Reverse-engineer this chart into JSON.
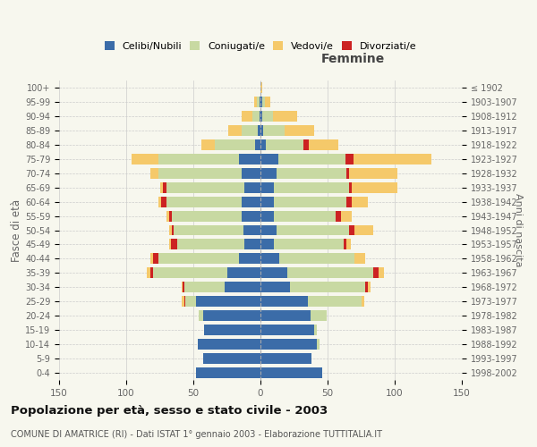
{
  "age_groups": [
    "0-4",
    "5-9",
    "10-14",
    "15-19",
    "20-24",
    "25-29",
    "30-34",
    "35-39",
    "40-44",
    "45-49",
    "50-54",
    "55-59",
    "60-64",
    "65-69",
    "70-74",
    "75-79",
    "80-84",
    "85-89",
    "90-94",
    "95-99",
    "100+"
  ],
  "birth_years": [
    "1998-2002",
    "1993-1997",
    "1988-1992",
    "1983-1987",
    "1978-1982",
    "1973-1977",
    "1968-1972",
    "1963-1967",
    "1958-1962",
    "1953-1957",
    "1948-1952",
    "1943-1947",
    "1938-1942",
    "1933-1937",
    "1928-1932",
    "1923-1927",
    "1918-1922",
    "1913-1917",
    "1908-1912",
    "1903-1907",
    "≤ 1902"
  ],
  "male": {
    "celibi": [
      48,
      43,
      47,
      42,
      43,
      48,
      27,
      25,
      16,
      12,
      13,
      14,
      14,
      12,
      14,
      16,
      4,
      2,
      1,
      1,
      0
    ],
    "coniugati": [
      0,
      0,
      0,
      0,
      3,
      8,
      30,
      55,
      60,
      50,
      52,
      52,
      56,
      58,
      62,
      60,
      30,
      12,
      5,
      2,
      0
    ],
    "vedovi": [
      0,
      0,
      0,
      0,
      0,
      2,
      1,
      3,
      2,
      1,
      2,
      2,
      2,
      2,
      6,
      20,
      10,
      10,
      8,
      2,
      0
    ],
    "divorziati": [
      0,
      0,
      0,
      0,
      0,
      1,
      1,
      2,
      4,
      5,
      1,
      2,
      4,
      3,
      0,
      0,
      0,
      0,
      0,
      0,
      0
    ]
  },
  "female": {
    "nubili": [
      46,
      38,
      42,
      40,
      37,
      35,
      22,
      20,
      14,
      10,
      12,
      10,
      10,
      10,
      12,
      13,
      4,
      2,
      1,
      1,
      0
    ],
    "coniugate": [
      0,
      0,
      2,
      2,
      12,
      40,
      56,
      64,
      56,
      52,
      54,
      46,
      54,
      56,
      52,
      50,
      28,
      16,
      8,
      2,
      0
    ],
    "vedove": [
      0,
      0,
      0,
      0,
      0,
      2,
      2,
      4,
      8,
      3,
      14,
      8,
      12,
      34,
      36,
      58,
      22,
      22,
      18,
      4,
      1
    ],
    "divorziate": [
      0,
      0,
      0,
      0,
      0,
      0,
      2,
      4,
      0,
      2,
      4,
      4,
      4,
      2,
      2,
      6,
      4,
      0,
      0,
      0,
      0
    ]
  },
  "colors": {
    "celibi": "#3b6ca8",
    "coniugati": "#c8d9a2",
    "vedovi": "#f5c96a",
    "divorziati": "#cc2222"
  },
  "xlim": 150,
  "title": "Popolazione per età, sesso e stato civile - 2003",
  "subtitle": "COMUNE DI AMATRICE (RI) - Dati ISTAT 1° gennaio 2003 - Elaborazione TUTTITALIA.IT",
  "ylabel_left": "Fasce di età",
  "ylabel_right": "Anni di nascita",
  "xlabel_female": "Femmine",
  "bg_color": "#f7f7ee",
  "grid_color": "#cccccc"
}
